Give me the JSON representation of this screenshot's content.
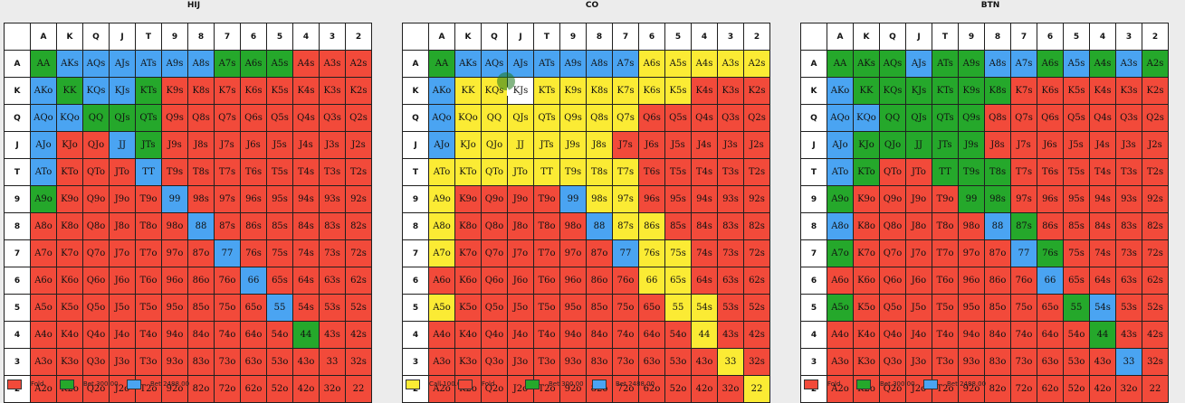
{
  "colors": {
    "fold": "#f24a3a",
    "bet300": "#25a82b",
    "bet2488": "#4aa4f2",
    "call": "#fbeb34"
  },
  "ranks": [
    "A",
    "K",
    "Q",
    "J",
    "T",
    "9",
    "8",
    "7",
    "6",
    "5",
    "4",
    "3",
    "2"
  ],
  "panels": [
    {
      "title": "HIJ",
      "legend": [
        {
          "label": "Fold",
          "color": "fold"
        },
        {
          "label": "Bet 300.00",
          "color": "bet300"
        },
        {
          "label": "Bet 2488.00",
          "color": "bet2488"
        }
      ],
      "cells": [
        [
          "AA",
          "AKs",
          "AQs",
          "AJs",
          "ATs",
          "A9s",
          "A8s",
          "A7s",
          "A6s",
          "A5s",
          "A4s",
          "A3s",
          "A2s"
        ],
        [
          "AKo",
          "KK",
          "KQs",
          "KJs",
          "KTs",
          "K9s",
          "K8s",
          "K7s",
          "K6s",
          "K5s",
          "K4s",
          "K3s",
          "K2s"
        ],
        [
          "AQo",
          "KQo",
          "QQ",
          "QJs",
          "QTs",
          "Q9s",
          "Q8s",
          "Q7s",
          "Q6s",
          "Q5s",
          "Q4s",
          "Q3s",
          "Q2s"
        ],
        [
          "AJo",
          "KJo",
          "QJo",
          "JJ",
          "JTs",
          "J9s",
          "J8s",
          "J7s",
          "J6s",
          "J5s",
          "J4s",
          "J3s",
          "J2s"
        ],
        [
          "ATo",
          "KTo",
          "QTo",
          "JTo",
          "TT",
          "T9s",
          "T8s",
          "T7s",
          "T6s",
          "T5s",
          "T4s",
          "T3s",
          "T2s"
        ],
        [
          "A9o",
          "K9o",
          "Q9o",
          "J9o",
          "T9o",
          "99",
          "98s",
          "97s",
          "96s",
          "95s",
          "94s",
          "93s",
          "92s"
        ],
        [
          "A8o",
          "K8o",
          "Q8o",
          "J8o",
          "T8o",
          "98o",
          "88",
          "87s",
          "86s",
          "85s",
          "84s",
          "83s",
          "82s"
        ],
        [
          "A7o",
          "K7o",
          "Q7o",
          "J7o",
          "T7o",
          "97o",
          "87o",
          "77",
          "76s",
          "75s",
          "74s",
          "73s",
          "72s"
        ],
        [
          "A6o",
          "K6o",
          "Q6o",
          "J6o",
          "T6o",
          "96o",
          "86o",
          "76o",
          "66",
          "65s",
          "64s",
          "63s",
          "62s"
        ],
        [
          "A5o",
          "K5o",
          "Q5o",
          "J5o",
          "T5o",
          "95o",
          "85o",
          "75o",
          "65o",
          "55",
          "54s",
          "53s",
          "52s"
        ],
        [
          "A4o",
          "K4o",
          "Q4o",
          "J4o",
          "T4o",
          "94o",
          "84o",
          "74o",
          "64o",
          "54o",
          "44",
          "43s",
          "42s"
        ],
        [
          "A3o",
          "K3o",
          "Q3o",
          "J3o",
          "T3o",
          "93o",
          "83o",
          "73o",
          "63o",
          "53o",
          "43o",
          "33",
          "32s"
        ],
        [
          "A2o",
          "K2o",
          "Q2o",
          "J2o",
          "T2o",
          "92o",
          "82o",
          "72o",
          "62o",
          "52o",
          "42o",
          "32o",
          "22"
        ]
      ],
      "strategy": [
        [
          "g",
          "b",
          "b",
          "b",
          "b",
          "b",
          "b",
          "g",
          "g",
          "g",
          "r",
          "r",
          "r"
        ],
        [
          "b",
          "g",
          "b",
          "b",
          "g",
          "r",
          "r",
          "r",
          "r",
          "r",
          "r",
          "r",
          "r"
        ],
        [
          "b",
          "b",
          "g",
          "g",
          "g",
          "r",
          "r",
          "r",
          "r",
          "r",
          "r",
          "r",
          "r"
        ],
        [
          "b",
          "r",
          "r",
          "b",
          "g",
          "r",
          "r",
          "r",
          "r",
          "r",
          "r",
          "r",
          "r"
        ],
        [
          "b",
          "r",
          "r",
          "r",
          "b",
          "r",
          "r",
          "r",
          "r",
          "r",
          "r",
          "r",
          "r"
        ],
        [
          "g",
          "r",
          "r",
          "r",
          "r",
          "b",
          "r",
          "r",
          "r",
          "r",
          "r",
          "r",
          "r"
        ],
        [
          "r",
          "r",
          "r",
          "r",
          "r",
          "r",
          "b",
          "r",
          "r",
          "r",
          "r",
          "r",
          "r"
        ],
        [
          "r",
          "r",
          "r",
          "r",
          "r",
          "r",
          "r",
          "b",
          "r",
          "r",
          "r",
          "r",
          "r"
        ],
        [
          "r",
          "r",
          "r",
          "r",
          "r",
          "r",
          "r",
          "r",
          "b",
          "r",
          "r",
          "r",
          "r"
        ],
        [
          "r",
          "r",
          "r",
          "r",
          "r",
          "r",
          "r",
          "r",
          "r",
          "b",
          "r",
          "r",
          "r"
        ],
        [
          "r",
          "r",
          "r",
          "r",
          "r",
          "r",
          "r",
          "r",
          "r",
          "r",
          "g",
          "r",
          "r"
        ],
        [
          "r",
          "r",
          "r",
          "r",
          "r",
          "r",
          "r",
          "r",
          "r",
          "r",
          "r",
          "r",
          "r"
        ],
        [
          "r",
          "r",
          "r",
          "r",
          "r",
          "r",
          "r",
          "r",
          "r",
          "r",
          "r",
          "r",
          "r"
        ]
      ]
    },
    {
      "title": "CO",
      "legend": [
        {
          "label": "Call 100.00",
          "color": "call"
        },
        {
          "label": "Fold",
          "color": "fold"
        },
        {
          "label": "Bet 300.00",
          "color": "bet300"
        },
        {
          "label": "Bet 2488.00",
          "color": "bet2488"
        }
      ],
      "cells": [
        [
          "AA",
          "AKs",
          "AQs",
          "AJs",
          "ATs",
          "A9s",
          "A8s",
          "A7s",
          "A6s",
          "A5s",
          "A4s",
          "A3s",
          "A2s"
        ],
        [
          "AKo",
          "KK",
          "KQs",
          "KJs",
          "KTs",
          "K9s",
          "K8s",
          "K7s",
          "K6s",
          "K5s",
          "K4s",
          "K3s",
          "K2s"
        ],
        [
          "AQo",
          "KQo",
          "QQ",
          "QJs",
          "QTs",
          "Q9s",
          "Q8s",
          "Q7s",
          "Q6s",
          "Q5s",
          "Q4s",
          "Q3s",
          "Q2s"
        ],
        [
          "AJo",
          "KJo",
          "QJo",
          "JJ",
          "JTs",
          "J9s",
          "J8s",
          "J7s",
          "J6s",
          "J5s",
          "J4s",
          "J3s",
          "J2s"
        ],
        [
          "ATo",
          "KTo",
          "QTo",
          "JTo",
          "TT",
          "T9s",
          "T8s",
          "T7s",
          "T6s",
          "T5s",
          "T4s",
          "T3s",
          "T2s"
        ],
        [
          "A9o",
          "K9o",
          "Q9o",
          "J9o",
          "T9o",
          "99",
          "98s",
          "97s",
          "96s",
          "95s",
          "94s",
          "93s",
          "92s"
        ],
        [
          "A8o",
          "K8o",
          "Q8o",
          "J8o",
          "T8o",
          "98o",
          "88",
          "87s",
          "86s",
          "85s",
          "84s",
          "83s",
          "82s"
        ],
        [
          "A7o",
          "K7o",
          "Q7o",
          "J7o",
          "T7o",
          "97o",
          "87o",
          "77",
          "76s",
          "75s",
          "74s",
          "73s",
          "72s"
        ],
        [
          "A6o",
          "K6o",
          "Q6o",
          "J6o",
          "T6o",
          "96o",
          "86o",
          "76o",
          "66",
          "65s",
          "64s",
          "63s",
          "62s"
        ],
        [
          "A5o",
          "K5o",
          "Q5o",
          "J5o",
          "T5o",
          "95o",
          "85o",
          "75o",
          "65o",
          "55",
          "54s",
          "53s",
          "52s"
        ],
        [
          "A4o",
          "K4o",
          "Q4o",
          "J4o",
          "T4o",
          "94o",
          "84o",
          "74o",
          "64o",
          "54o",
          "44",
          "43s",
          "42s"
        ],
        [
          "A3o",
          "K3o",
          "Q3o",
          "J3o",
          "T3o",
          "93o",
          "83o",
          "73o",
          "63o",
          "53o",
          "43o",
          "33",
          "32s"
        ],
        [
          "A2o",
          "K2o",
          "Q2o",
          "J2o",
          "T2o",
          "92o",
          "82o",
          "72o",
          "62o",
          "52o",
          "42o",
          "32o",
          "22"
        ]
      ],
      "strategy": [
        [
          "g",
          "b",
          "b",
          "b",
          "b",
          "b",
          "b",
          "b",
          "y",
          "y",
          "y",
          "y",
          "y"
        ],
        [
          "b",
          "y",
          "y",
          "w",
          "y",
          "y",
          "y",
          "y",
          "y",
          "y",
          "r",
          "r",
          "r"
        ],
        [
          "b",
          "y",
          "y",
          "y",
          "y",
          "y",
          "y",
          "y",
          "r",
          "r",
          "r",
          "r",
          "r"
        ],
        [
          "b",
          "y",
          "y",
          "y",
          "y",
          "y",
          "y",
          "r",
          "r",
          "r",
          "r",
          "r",
          "r"
        ],
        [
          "y",
          "y",
          "y",
          "y",
          "y",
          "y",
          "y",
          "y",
          "r",
          "r",
          "r",
          "r",
          "r"
        ],
        [
          "y",
          "r",
          "r",
          "r",
          "r",
          "b",
          "y",
          "y",
          "r",
          "r",
          "r",
          "r",
          "r"
        ],
        [
          "y",
          "r",
          "r",
          "r",
          "r",
          "r",
          "b",
          "y",
          "y",
          "r",
          "r",
          "r",
          "r"
        ],
        [
          "y",
          "r",
          "r",
          "r",
          "r",
          "r",
          "r",
          "b",
          "y",
          "y",
          "r",
          "r",
          "r"
        ],
        [
          "r",
          "r",
          "r",
          "r",
          "r",
          "r",
          "r",
          "r",
          "y",
          "y",
          "r",
          "r",
          "r"
        ],
        [
          "y",
          "r",
          "r",
          "r",
          "r",
          "r",
          "r",
          "r",
          "r",
          "y",
          "y",
          "r",
          "r"
        ],
        [
          "r",
          "r",
          "r",
          "r",
          "r",
          "r",
          "r",
          "r",
          "r",
          "r",
          "y",
          "r",
          "r"
        ],
        [
          "r",
          "r",
          "r",
          "r",
          "r",
          "r",
          "r",
          "r",
          "r",
          "r",
          "r",
          "y",
          "r"
        ],
        [
          "r",
          "r",
          "r",
          "r",
          "r",
          "r",
          "r",
          "r",
          "r",
          "r",
          "r",
          "r",
          "y"
        ]
      ]
    },
    {
      "title": "BTN",
      "legend": [
        {
          "label": "Fold",
          "color": "fold"
        },
        {
          "label": "Bet 300.00",
          "color": "bet300"
        },
        {
          "label": "Bet 2488.00",
          "color": "bet2488"
        }
      ],
      "cells": [
        [
          "AA",
          "AKs",
          "AQs",
          "AJs",
          "ATs",
          "A9s",
          "A8s",
          "A7s",
          "A6s",
          "A5s",
          "A4s",
          "A3s",
          "A2s"
        ],
        [
          "AKo",
          "KK",
          "KQs",
          "KJs",
          "KTs",
          "K9s",
          "K8s",
          "K7s",
          "K6s",
          "K5s",
          "K4s",
          "K3s",
          "K2s"
        ],
        [
          "AQo",
          "KQo",
          "QQ",
          "QJs",
          "QTs",
          "Q9s",
          "Q8s",
          "Q7s",
          "Q6s",
          "Q5s",
          "Q4s",
          "Q3s",
          "Q2s"
        ],
        [
          "AJo",
          "KJo",
          "QJo",
          "JJ",
          "JTs",
          "J9s",
          "J8s",
          "J7s",
          "J6s",
          "J5s",
          "J4s",
          "J3s",
          "J2s"
        ],
        [
          "ATo",
          "KTo",
          "QTo",
          "JTo",
          "TT",
          "T9s",
          "T8s",
          "T7s",
          "T6s",
          "T5s",
          "T4s",
          "T3s",
          "T2s"
        ],
        [
          "A9o",
          "K9o",
          "Q9o",
          "J9o",
          "T9o",
          "99",
          "98s",
          "97s",
          "96s",
          "95s",
          "94s",
          "93s",
          "92s"
        ],
        [
          "A8o",
          "K8o",
          "Q8o",
          "J8o",
          "T8o",
          "98o",
          "88",
          "87s",
          "86s",
          "85s",
          "84s",
          "83s",
          "82s"
        ],
        [
          "A7o",
          "K7o",
          "Q7o",
          "J7o",
          "T7o",
          "97o",
          "87o",
          "77",
          "76s",
          "75s",
          "74s",
          "73s",
          "72s"
        ],
        [
          "A6o",
          "K6o",
          "Q6o",
          "J6o",
          "T6o",
          "96o",
          "86o",
          "76o",
          "66",
          "65s",
          "64s",
          "63s",
          "62s"
        ],
        [
          "A5o",
          "K5o",
          "Q5o",
          "J5o",
          "T5o",
          "95o",
          "85o",
          "75o",
          "65o",
          "55",
          "54s",
          "53s",
          "52s"
        ],
        [
          "A4o",
          "K4o",
          "Q4o",
          "J4o",
          "T4o",
          "94o",
          "84o",
          "74o",
          "64o",
          "54o",
          "44",
          "43s",
          "42s"
        ],
        [
          "A3o",
          "K3o",
          "Q3o",
          "J3o",
          "T3o",
          "93o",
          "83o",
          "73o",
          "63o",
          "53o",
          "43o",
          "33",
          "32s"
        ],
        [
          "A2o",
          "K2o",
          "Q2o",
          "J2o",
          "T2o",
          "92o",
          "82o",
          "72o",
          "62o",
          "52o",
          "42o",
          "32o",
          "22"
        ]
      ],
      "strategy": [
        [
          "g",
          "g",
          "g",
          "b",
          "g",
          "g",
          "b",
          "b",
          "g",
          "b",
          "g",
          "b",
          "g"
        ],
        [
          "b",
          "g",
          "g",
          "g",
          "g",
          "g",
          "g",
          "r",
          "r",
          "r",
          "r",
          "r",
          "r"
        ],
        [
          "b",
          "b",
          "g",
          "g",
          "g",
          "g",
          "r",
          "r",
          "r",
          "r",
          "r",
          "r",
          "r"
        ],
        [
          "b",
          "g",
          "g",
          "g",
          "g",
          "g",
          "r",
          "r",
          "r",
          "r",
          "r",
          "r",
          "r"
        ],
        [
          "b",
          "g",
          "r",
          "r",
          "g",
          "g",
          "g",
          "r",
          "r",
          "r",
          "r",
          "r",
          "r"
        ],
        [
          "g",
          "r",
          "r",
          "r",
          "r",
          "g",
          "g",
          "r",
          "r",
          "r",
          "r",
          "r",
          "r"
        ],
        [
          "b",
          "r",
          "r",
          "r",
          "r",
          "r",
          "b",
          "g",
          "r",
          "r",
          "r",
          "r",
          "r"
        ],
        [
          "g",
          "r",
          "r",
          "r",
          "r",
          "r",
          "r",
          "b",
          "g",
          "r",
          "r",
          "r",
          "r"
        ],
        [
          "r",
          "r",
          "r",
          "r",
          "r",
          "r",
          "r",
          "r",
          "b",
          "r",
          "r",
          "r",
          "r"
        ],
        [
          "g",
          "r",
          "r",
          "r",
          "r",
          "r",
          "r",
          "r",
          "r",
          "g",
          "b",
          "r",
          "r"
        ],
        [
          "r",
          "r",
          "r",
          "r",
          "r",
          "r",
          "r",
          "r",
          "r",
          "r",
          "g",
          "r",
          "r"
        ],
        [
          "r",
          "r",
          "r",
          "r",
          "r",
          "r",
          "r",
          "r",
          "r",
          "r",
          "r",
          "b",
          "r"
        ],
        [
          "r",
          "r",
          "r",
          "r",
          "r",
          "r",
          "r",
          "r",
          "r",
          "r",
          "r",
          "r",
          "r"
        ]
      ]
    }
  ]
}
